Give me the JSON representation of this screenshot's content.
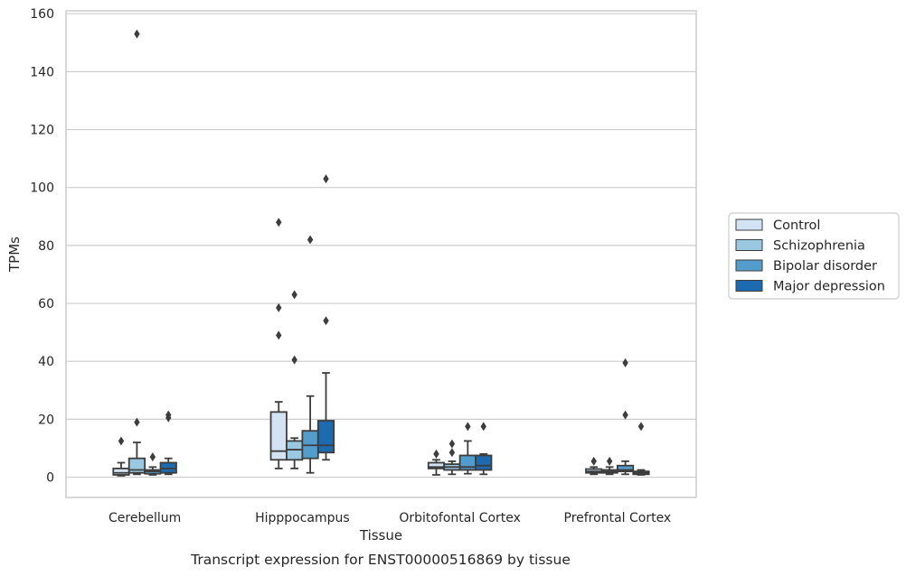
{
  "chart_data": {
    "type": "box",
    "xlabel": "Tissue",
    "ylabel": "TPMs",
    "caption": "Transcript expression for ENST00000516869 by tissue",
    "ylim": [
      -7,
      161
    ],
    "yticks": [
      0,
      20,
      40,
      60,
      80,
      100,
      120,
      140,
      160
    ],
    "grid": "horizontal",
    "legend_position": "right",
    "categories": [
      "Cerebellum",
      "Hipppocampus",
      "Orbitofontal Cortex",
      "Prefrontal Cortex"
    ],
    "series": [
      {
        "name": "Control",
        "color": "#d3e3f3",
        "boxes": [
          {
            "whislo": 0.5,
            "q1": 0.8,
            "med": 1.5,
            "q3": 3,
            "whishi": 5,
            "fliers": [
              12.5
            ]
          },
          {
            "whislo": 3,
            "q1": 6,
            "med": 9,
            "q3": 22.5,
            "whishi": 26,
            "fliers": [
              49,
              58.5,
              88
            ]
          },
          {
            "whislo": 0.8,
            "q1": 3,
            "med": 3.5,
            "q3": 5,
            "whishi": 6,
            "fliers": [
              8
            ]
          },
          {
            "whislo": 1,
            "q1": 1.5,
            "med": 2,
            "q3": 2.8,
            "whishi": 3.5,
            "fliers": [
              5.5
            ]
          }
        ]
      },
      {
        "name": "Schizophrenia",
        "color": "#9ac8e0",
        "boxes": [
          {
            "whislo": 1,
            "q1": 1.5,
            "med": 2.5,
            "q3": 6.5,
            "whishi": 12,
            "fliers": [
              19,
              153
            ]
          },
          {
            "whislo": 3,
            "q1": 6,
            "med": 9.5,
            "q3": 12.5,
            "whishi": 13.5,
            "fliers": [
              40.5,
              63
            ]
          },
          {
            "whislo": 1,
            "q1": 2.5,
            "med": 3.5,
            "q3": 4.5,
            "whishi": 5.5,
            "fliers": [
              8.5,
              11.5
            ]
          },
          {
            "whislo": 1,
            "q1": 1.5,
            "med": 2,
            "q3": 2.5,
            "whishi": 3.5,
            "fliers": [
              5.5
            ]
          }
        ]
      },
      {
        "name": "Bipolar disorder",
        "color": "#529dcc",
        "boxes": [
          {
            "whislo": 0.8,
            "q1": 1.2,
            "med": 2,
            "q3": 2.5,
            "whishi": 3.5,
            "fliers": [
              7
            ]
          },
          {
            "whislo": 1.5,
            "q1": 6.5,
            "med": 11,
            "q3": 16,
            "whishi": 28,
            "fliers": [
              82
            ]
          },
          {
            "whislo": 1.2,
            "q1": 2.5,
            "med": 3.5,
            "q3": 7.5,
            "whishi": 12.5,
            "fliers": [
              17.5
            ]
          },
          {
            "whislo": 1,
            "q1": 2,
            "med": 2.5,
            "q3": 4,
            "whishi": 5.5,
            "fliers": [
              21.5,
              39.5
            ]
          }
        ]
      },
      {
        "name": "Major depression",
        "color": "#1c6aaf",
        "boxes": [
          {
            "whislo": 1,
            "q1": 1.5,
            "med": 3,
            "q3": 5,
            "whishi": 6.5,
            "fliers": [
              20.5,
              21.5
            ]
          },
          {
            "whislo": 6,
            "q1": 8.5,
            "med": 11,
            "q3": 19.5,
            "whishi": 36,
            "fliers": [
              54,
              103
            ]
          },
          {
            "whislo": 1,
            "q1": 2.5,
            "med": 4,
            "q3": 7.5,
            "whishi": 8,
            "fliers": [
              17.5
            ]
          },
          {
            "whislo": 0.8,
            "q1": 1,
            "med": 1.5,
            "q3": 2,
            "whishi": 2.5,
            "fliers": [
              17.5
            ]
          }
        ]
      }
    ]
  }
}
